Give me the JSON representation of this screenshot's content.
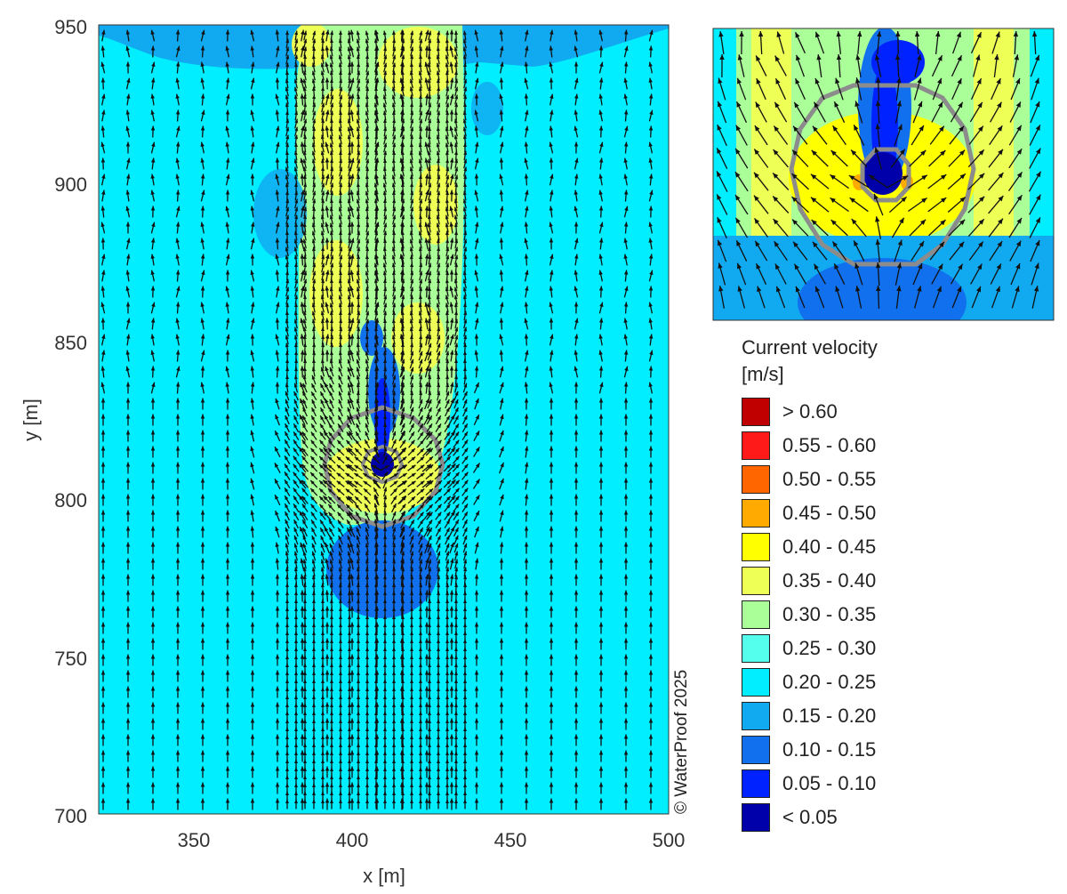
{
  "chart_data": [
    {
      "type": "heatmap",
      "subtype": "vector field over filled velocity contours",
      "view": "main",
      "xlabel": "x [m]",
      "ylabel": "y [m]",
      "xlim": [
        320,
        500
      ],
      "ylim": [
        700,
        950
      ],
      "xticks": [
        "350",
        "400",
        "450",
        "500"
      ],
      "yticks": [
        "700",
        "750",
        "800",
        "850",
        "900",
        "950"
      ],
      "grid": false,
      "background_velocity_class": "0.20 - 0.25",
      "structure": {
        "type": "circular pile",
        "center_x": 410,
        "center_y": 810,
        "outer_ring_radius": 18,
        "pile_radius": 3.5
      },
      "features": [
        {
          "name": "wake",
          "x_range": [
            385,
            435
          ],
          "y_range": [
            810,
            950
          ],
          "velocity_class": "0.30 - 0.45"
        },
        {
          "name": "upstream stagnation",
          "center": [
            410,
            780
          ],
          "radius": 17,
          "velocity_class": "0.10 - 0.15"
        },
        {
          "name": "near-wake",
          "x_range": [
            405,
            415
          ],
          "y_range": [
            815,
            840
          ],
          "velocity_class": "0.05 - 0.10"
        }
      ]
    },
    {
      "type": "heatmap",
      "subtype": "vector field over filled velocity contours",
      "view": "inset (zoom around structure)",
      "xlim": [
        388,
        432
      ],
      "ylim": [
        788,
        838
      ],
      "axes_labels_shown": false
    }
  ],
  "legend": {
    "title": "Current velocity",
    "unit": "[m/s]",
    "placement": "right",
    "items": [
      {
        "label": "> 0.60",
        "color": "#c00000"
      },
      {
        "label": "0.55 - 0.60",
        "color": "#ff1a1a"
      },
      {
        "label": "0.50 - 0.55",
        "color": "#ff6600"
      },
      {
        "label": "0.45 - 0.50",
        "color": "#ffaa00"
      },
      {
        "label": "0.40 - 0.45",
        "color": "#ffff00"
      },
      {
        "label": "0.35 - 0.40",
        "color": "#eeff55"
      },
      {
        "label": "0.30 - 0.35",
        "color": "#aaff99"
      },
      {
        "label": "0.25 - 0.30",
        "color": "#55ffee"
      },
      {
        "label": "0.20 - 0.25",
        "color": "#00eeff"
      },
      {
        "label": "0.15 - 0.20",
        "color": "#11aaf0"
      },
      {
        "label": "0.10 - 0.15",
        "color": "#1170ee"
      },
      {
        "label": "0.05 - 0.10",
        "color": "#0022ff"
      },
      {
        "label": "< 0.05",
        "color": "#0000aa"
      }
    ]
  },
  "copyright": "© WaterProof 2025",
  "colors": {
    "structure_outline": "#8c8c8c",
    "arrow": "#111111"
  }
}
